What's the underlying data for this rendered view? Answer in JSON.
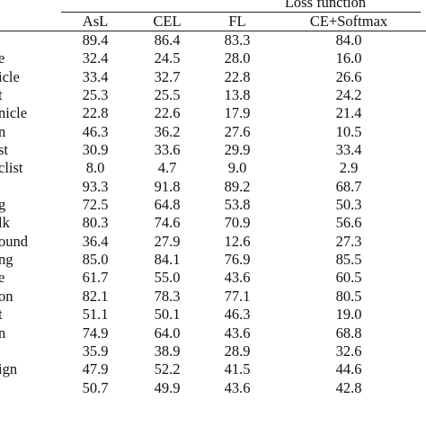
{
  "table": {
    "group_label": "Loss function",
    "columns": [
      "AsL",
      "CEL",
      "FL",
      "CE+Softmax"
    ],
    "rows": [
      {
        "label": "",
        "values": [
          "89.4",
          "86.4",
          "83.3",
          "84.0"
        ]
      },
      {
        "label": "e",
        "values": [
          "32.4",
          "24.5",
          "28.0",
          "16.0"
        ]
      },
      {
        "label": "icle",
        "values": [
          "33.4",
          "32.7",
          "22.8",
          "26.6"
        ]
      },
      {
        "label": "t",
        "values": [
          "25.3",
          "25.5",
          "13.8",
          "24.2"
        ]
      },
      {
        "label": "nicle",
        "values": [
          "22.8",
          "22.6",
          "17.9",
          "21.4"
        ]
      },
      {
        "label": "n",
        "values": [
          "46.3",
          "36.2",
          "27.6",
          "10.5"
        ]
      },
      {
        "label": "st",
        "values": [
          "30.9",
          "33.6",
          "29.9",
          "33.4"
        ]
      },
      {
        "label": "clist",
        "values": [
          "8.0",
          "4.7",
          "9.0",
          "2.9"
        ]
      },
      {
        "label": "",
        "values": [
          "93.3",
          "91.8",
          "89.2",
          "68.7"
        ]
      },
      {
        "label": "g",
        "values": [
          "72.5",
          "64.8",
          "53.8",
          "50.3"
        ]
      },
      {
        "label": "lk",
        "values": [
          "80.3",
          "74.6",
          "70.9",
          "56.6"
        ]
      },
      {
        "label": "ound",
        "values": [
          "36.4",
          "27.9",
          "12.6",
          "27.3"
        ]
      },
      {
        "label": "ng",
        "values": [
          "85.0",
          "84.1",
          "76.9",
          "85.5"
        ]
      },
      {
        "label": "e",
        "values": [
          "61.7",
          "55.0",
          "43.6",
          "60.5"
        ]
      },
      {
        "label": "on",
        "values": [
          "82.1",
          "78.3",
          "77.1",
          "80.5"
        ]
      },
      {
        "label": "t",
        "values": [
          "51.1",
          "50.1",
          "46.3",
          "19.0"
        ]
      },
      {
        "label": "n",
        "values": [
          "74.9",
          "64.0",
          "43.6",
          "68.8"
        ]
      },
      {
        "label": "",
        "values": [
          "35.9",
          "38.9",
          "28.9",
          "32.6"
        ]
      },
      {
        "label": "ign",
        "values": [
          "47.9",
          "52.2",
          "41.5",
          "44.6"
        ]
      },
      {
        "label": "",
        "values": [
          "50.7",
          "49.9",
          "43.6",
          "42.8"
        ]
      }
    ]
  }
}
